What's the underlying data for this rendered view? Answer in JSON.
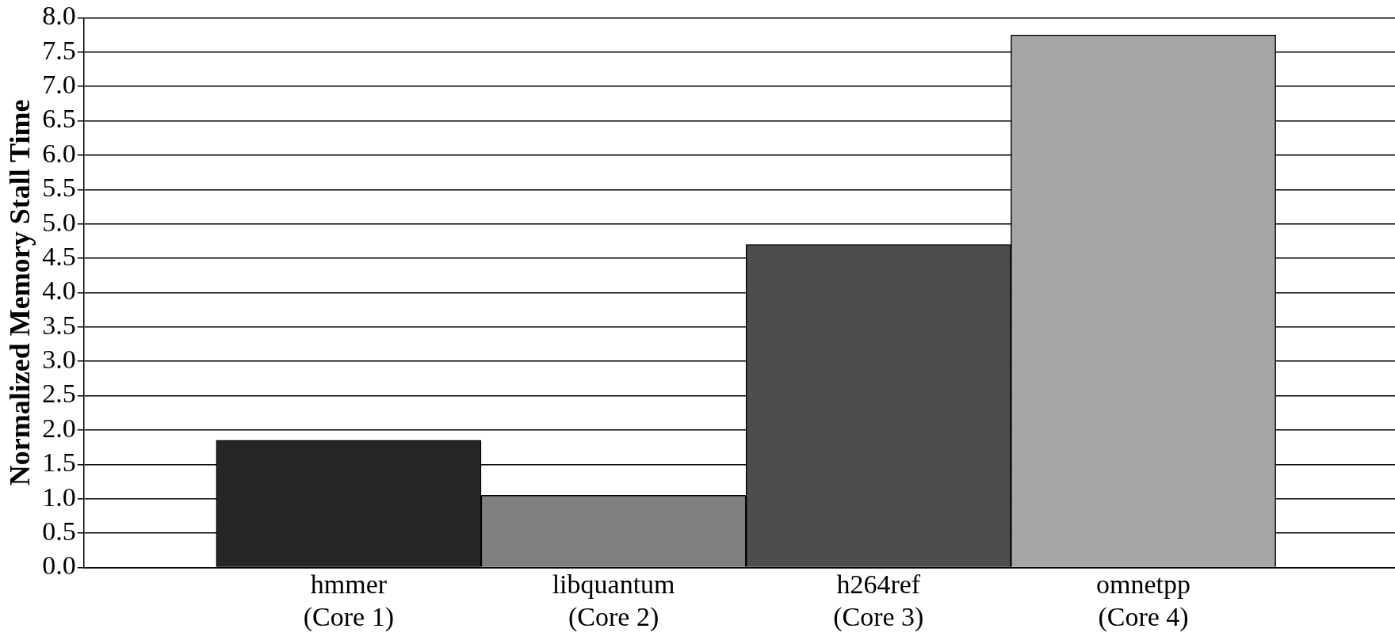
{
  "chart_data": {
    "type": "bar",
    "ylabel": "Normalized Memory Stall Time",
    "categories": [
      "hmmer\n(Core 1)",
      "libquantum\n(Core 2)",
      "h264ref\n(Core 3)",
      "omnetpp\n(Core 4)"
    ],
    "values": [
      1.85,
      1.05,
      4.7,
      7.75
    ],
    "colors": [
      "#262626",
      "#808080",
      "#4d4d4d",
      "#a6a6a6"
    ],
    "ylim": [
      0,
      8
    ],
    "yticks": [
      {
        "value": 0,
        "label": "0.0"
      },
      {
        "value": 0.5,
        "label": "0.5"
      },
      {
        "value": 1,
        "label": "1.0"
      },
      {
        "value": 1.5,
        "label": "1.5"
      },
      {
        "value": 2,
        "label": "2.0"
      },
      {
        "value": 2.5,
        "label": "2.5"
      },
      {
        "value": 3,
        "label": "3.0"
      },
      {
        "value": 3.5,
        "label": "3.5"
      },
      {
        "value": 4,
        "label": "4.0"
      },
      {
        "value": 4.5,
        "label": "4.5"
      },
      {
        "value": 5,
        "label": "5.0"
      },
      {
        "value": 5.5,
        "label": "5.5"
      },
      {
        "value": 6,
        "label": "6.0"
      },
      {
        "value": 6.5,
        "label": "6.5"
      },
      {
        "value": 7,
        "label": "7.0"
      },
      {
        "value": 7.5,
        "label": "7.5"
      },
      {
        "value": 8,
        "label": "8.0"
      }
    ],
    "grid": "y"
  }
}
